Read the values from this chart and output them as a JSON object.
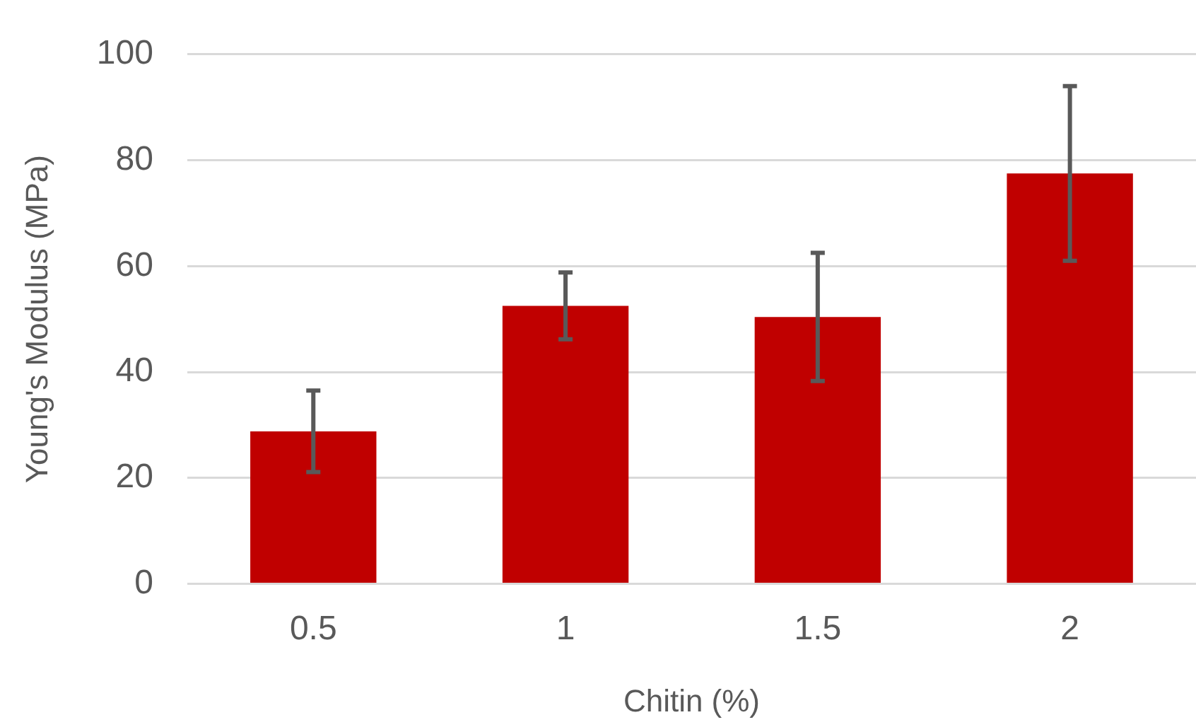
{
  "chart_data": {
    "type": "bar",
    "xlabel": "Chitin (%)",
    "ylabel": "Young's Modulus (MPa)",
    "categories": [
      "0.5",
      "1",
      "1.5",
      "2"
    ],
    "values": [
      28.8,
      52.5,
      50.4,
      77.5
    ],
    "errors": [
      7.7,
      6.3,
      12.1,
      16.5
    ],
    "color": "#c00000",
    "ylim": [
      0,
      100
    ],
    "yticks": [
      0,
      20,
      40,
      60,
      80,
      100
    ],
    "grid": "y",
    "legend": false
  }
}
